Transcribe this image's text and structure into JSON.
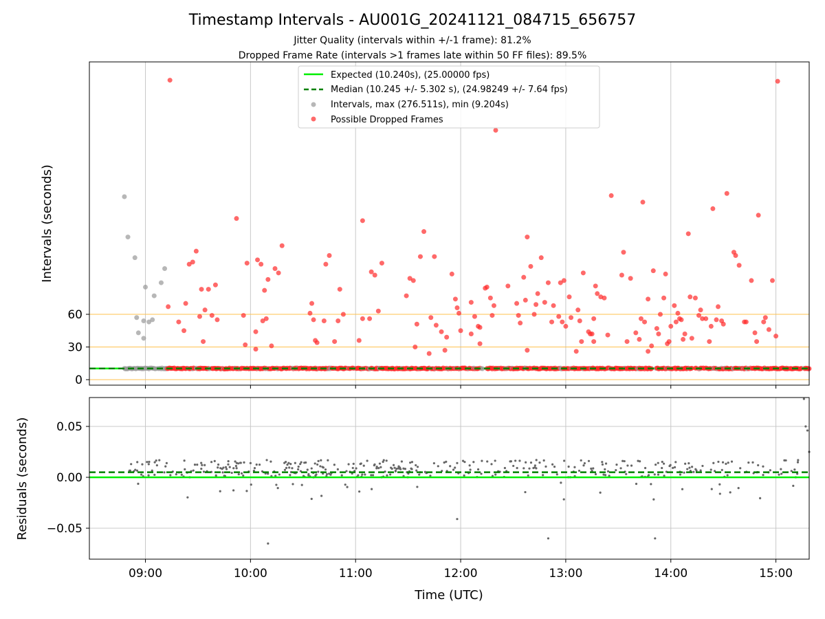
{
  "title": "Timestamp Intervals - AU001G_20241121_084715_656757",
  "subtitle_1": "Jitter Quality (intervals within +/-1 frame): 81.2%",
  "subtitle_2": "Dropped Frame Rate (intervals >1 frames late within 50 FF files): 89.5%",
  "colors": {
    "expected": "#00ee00",
    "median": "#008000",
    "intervals": "#999999",
    "dropped": "#ff2a2a",
    "threshold": "#ffc04d",
    "residual": "#666666",
    "grid": "#c8c8c8"
  },
  "chart_data": [
    {
      "type": "scatter",
      "ylabel": "Intervals (seconds)",
      "y_ticks": [
        0,
        30,
        60
      ],
      "x_ticks": [
        "09:00",
        "10:00",
        "11:00",
        "12:00",
        "13:00",
        "14:00",
        "15:00"
      ],
      "x_range": [
        "08:28",
        "15:19"
      ],
      "grid": "vertical",
      "legend_position": "top-center",
      "threshold_lines": [
        0,
        30,
        60
      ],
      "expected_interval": 10.24,
      "median_interval": 10.245,
      "legend": [
        {
          "label": "Expected (10.240s), (25.00000 fps)",
          "kind": "solid-line"
        },
        {
          "label": "Median (10.245 +/- 5.302 s), (24.98249 +/- 7.64 fps)",
          "kind": "dashed-line"
        },
        {
          "label": "Intervals, max (276.511s), min (9.204s)",
          "kind": "gray-dot"
        },
        {
          "label": "Possible Dropped Frames",
          "kind": "red-dot"
        }
      ],
      "series": [
        {
          "name": "Intervals, max (276.511s), min (9.204s)",
          "points": [
            [
              "08:48",
              168
            ],
            [
              "08:50",
              131
            ],
            [
              "08:54",
              112
            ],
            [
              "08:55",
              57
            ],
            [
              "08:56",
              43
            ],
            [
              "08:59",
              54
            ],
            [
              "08:59",
              38
            ],
            [
              "09:00",
              85
            ],
            [
              "09:02",
              53
            ],
            [
              "09:04",
              55
            ],
            [
              "09:05",
              77
            ],
            [
              "09:09",
              89
            ],
            [
              "09:11",
              102
            ]
          ]
        },
        {
          "name": "Possible Dropped Frames",
          "points": [
            [
              "09:14",
              275
            ],
            [
              "09:13",
              67
            ],
            [
              "09:19",
              53
            ],
            [
              "09:22",
              45
            ],
            [
              "09:23",
              70
            ],
            [
              "09:25",
              106
            ],
            [
              "09:27",
              108
            ],
            [
              "09:29",
              118
            ],
            [
              "09:31",
              58
            ],
            [
              "09:32",
              83
            ],
            [
              "09:33",
              35
            ],
            [
              "09:34",
              64
            ],
            [
              "09:36",
              83
            ],
            [
              "09:38",
              59
            ],
            [
              "09:40",
              87
            ],
            [
              "09:41",
              55
            ],
            [
              "09:52",
              148
            ],
            [
              "09:56",
              59
            ],
            [
              "09:57",
              32
            ],
            [
              "09:58",
              107
            ],
            [
              "10:03",
              28
            ],
            [
              "10:03",
              44
            ],
            [
              "10:04",
              110
            ],
            [
              "10:06",
              106
            ],
            [
              "10:07",
              54
            ],
            [
              "10:08",
              82
            ],
            [
              "10:09",
              56
            ],
            [
              "10:10",
              92
            ],
            [
              "10:12",
              31
            ],
            [
              "10:14",
              102
            ],
            [
              "10:16",
              98
            ],
            [
              "10:18",
              123
            ],
            [
              "10:34",
              61
            ],
            [
              "10:35",
              70
            ],
            [
              "10:36",
              55
            ],
            [
              "10:37",
              36
            ],
            [
              "10:38",
              34
            ],
            [
              "10:42",
              54
            ],
            [
              "10:43",
              106
            ],
            [
              "10:45",
              114
            ],
            [
              "10:48",
              35
            ],
            [
              "10:50",
              54
            ],
            [
              "10:51",
              83
            ],
            [
              "10:53",
              60
            ],
            [
              "11:02",
              36
            ],
            [
              "11:04",
              146
            ],
            [
              "11:04",
              56
            ],
            [
              "11:08",
              56
            ],
            [
              "11:09",
              99
            ],
            [
              "11:11",
              96
            ],
            [
              "11:13",
              63
            ],
            [
              "11:15",
              107
            ],
            [
              "11:29",
              77
            ],
            [
              "11:31",
              93
            ],
            [
              "11:33",
              91
            ],
            [
              "11:34",
              30
            ],
            [
              "11:35",
              51
            ],
            [
              "11:37",
              113
            ],
            [
              "11:39",
              136
            ],
            [
              "11:42",
              24
            ],
            [
              "11:43",
              57
            ],
            [
              "11:45",
              113
            ],
            [
              "11:46",
              50
            ],
            [
              "11:49",
              44
            ],
            [
              "11:51",
              27
            ],
            [
              "11:52",
              39
            ],
            [
              "11:55",
              97
            ],
            [
              "11:57",
              74
            ],
            [
              "11:58",
              66
            ],
            [
              "11:59",
              61
            ],
            [
              "12:00",
              45
            ],
            [
              "12:06",
              42
            ],
            [
              "12:06",
              71
            ],
            [
              "12:08",
              58
            ],
            [
              "12:10",
              49
            ],
            [
              "12:11",
              48
            ],
            [
              "12:11",
              33
            ],
            [
              "12:14",
              84
            ],
            [
              "12:15",
              85
            ],
            [
              "12:17",
              75
            ],
            [
              "12:18",
              59
            ],
            [
              "12:19",
              68
            ],
            [
              "12:20",
              229
            ],
            [
              "12:27",
              86
            ],
            [
              "12:32",
              70
            ],
            [
              "12:33",
              59
            ],
            [
              "12:34",
              52
            ],
            [
              "12:36",
              94
            ],
            [
              "12:37",
              73
            ],
            [
              "12:38",
              27
            ],
            [
              "12:38",
              131
            ],
            [
              "12:40",
              104
            ],
            [
              "12:42",
              60
            ],
            [
              "12:43",
              69
            ],
            [
              "12:44",
              79
            ],
            [
              "12:46",
              112
            ],
            [
              "12:48",
              71
            ],
            [
              "12:50",
              89
            ],
            [
              "12:52",
              53
            ],
            [
              "12:53",
              68
            ],
            [
              "12:56",
              58
            ],
            [
              "12:57",
              89
            ],
            [
              "12:58",
              53
            ],
            [
              "12:59",
              91
            ],
            [
              "13:00",
              49
            ],
            [
              "13:02",
              76
            ],
            [
              "13:03",
              57
            ],
            [
              "13:06",
              26
            ],
            [
              "13:07",
              64
            ],
            [
              "13:08",
              54
            ],
            [
              "13:09",
              35
            ],
            [
              "13:10",
              98
            ],
            [
              "13:13",
              44
            ],
            [
              "13:14",
              42
            ],
            [
              "13:15",
              42
            ],
            [
              "13:16",
              35
            ],
            [
              "13:16",
              56
            ],
            [
              "13:17",
              86
            ],
            [
              "13:18",
              79
            ],
            [
              "13:20",
              76
            ],
            [
              "13:22",
              75
            ],
            [
              "13:24",
              41
            ],
            [
              "13:26",
              169
            ],
            [
              "13:32",
              96
            ],
            [
              "13:33",
              117
            ],
            [
              "13:35",
              35
            ],
            [
              "13:37",
              93
            ],
            [
              "13:40",
              43
            ],
            [
              "13:42",
              37
            ],
            [
              "13:43",
              56
            ],
            [
              "13:44",
              163
            ],
            [
              "13:45",
              53
            ],
            [
              "13:47",
              26
            ],
            [
              "13:47",
              74
            ],
            [
              "13:49",
              31
            ],
            [
              "13:50",
              100
            ],
            [
              "13:52",
              47
            ],
            [
              "13:53",
              42
            ],
            [
              "13:54",
              60
            ],
            [
              "13:56",
              75
            ],
            [
              "13:57",
              97
            ],
            [
              "13:58",
              33
            ],
            [
              "13:59",
              35
            ],
            [
              "14:00",
              49
            ],
            [
              "14:02",
              68
            ],
            [
              "14:03",
              53
            ],
            [
              "14:04",
              61
            ],
            [
              "14:05",
              56
            ],
            [
              "14:06",
              55
            ],
            [
              "14:07",
              37
            ],
            [
              "14:08",
              42
            ],
            [
              "14:10",
              134
            ],
            [
              "14:11",
              76
            ],
            [
              "14:12",
              38
            ],
            [
              "14:14",
              75
            ],
            [
              "14:16",
              59
            ],
            [
              "14:17",
              64
            ],
            [
              "14:18",
              56
            ],
            [
              "14:20",
              56
            ],
            [
              "14:22",
              35
            ],
            [
              "14:23",
              49
            ],
            [
              "14:24",
              157
            ],
            [
              "14:26",
              55
            ],
            [
              "14:27",
              67
            ],
            [
              "14:29",
              54
            ],
            [
              "14:30",
              51
            ],
            [
              "14:32",
              171
            ],
            [
              "14:36",
              117
            ],
            [
              "14:37",
              114
            ],
            [
              "14:39",
              105
            ],
            [
              "14:42",
              53
            ],
            [
              "14:43",
              53
            ],
            [
              "14:46",
              91
            ],
            [
              "14:48",
              43
            ],
            [
              "14:49",
              35
            ],
            [
              "14:50",
              151
            ],
            [
              "14:53",
              53
            ],
            [
              "14:54",
              57
            ],
            [
              "14:56",
              46
            ],
            [
              "14:58",
              91
            ],
            [
              "15:00",
              40
            ],
            [
              "15:01",
              274
            ]
          ]
        }
      ]
    },
    {
      "type": "scatter",
      "xlabel": "Time (UTC)",
      "ylabel": "Residuals (seconds)",
      "y_ticks": [
        "0.05",
        "0.00",
        "−0.05"
      ],
      "ylim": [
        -0.08,
        0.08
      ],
      "x_ticks": [
        "09:00",
        "10:00",
        "11:00",
        "12:00",
        "13:00",
        "14:00",
        "15:00"
      ],
      "grid": "both",
      "expected_residual": 0.0,
      "median_residual": 0.005,
      "residual_bands": {
        "upper_min": 0.0,
        "upper_max": 0.017,
        "lower_min": -0.022,
        "lower_max": -0.005
      },
      "outliers": [
        [
          "10:10",
          -0.065
        ],
        [
          "11:58",
          -0.041
        ],
        [
          "12:50",
          -0.06
        ],
        [
          "13:51",
          -0.06
        ],
        [
          "15:16",
          0.077
        ],
        [
          "15:17",
          0.05
        ],
        [
          "15:18",
          0.046
        ],
        [
          "15:19",
          0.025
        ]
      ]
    }
  ]
}
